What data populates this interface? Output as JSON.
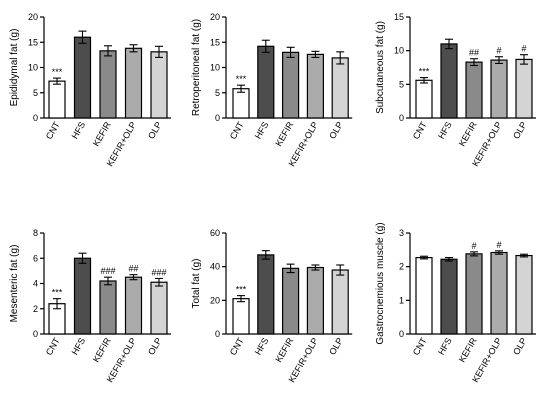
{
  "chart_data": [
    {
      "type": "bar",
      "ylabel": "Epididymal fat (g)",
      "ylim": [
        0,
        20
      ],
      "yticks": [
        "0",
        "5",
        "10",
        "15",
        "20"
      ],
      "categories": [
        "CNT",
        "HFS",
        "KEFIR",
        "KEFIR+OLP",
        "OLP"
      ],
      "values": [
        7.3,
        16.0,
        13.3,
        13.8,
        13.1
      ],
      "errors": [
        0.6,
        1.2,
        1.0,
        0.7,
        1.1
      ],
      "annotations": [
        "***",
        "",
        "",
        "",
        ""
      ],
      "fills": [
        "#ffffff",
        "#4d4d4d",
        "#8a8a8a",
        "#ababab",
        "#d4d4d4"
      ]
    },
    {
      "type": "bar",
      "ylabel": "Retroperitoneal fat (g)",
      "ylim": [
        0,
        20
      ],
      "yticks": [
        "0",
        "5",
        "10",
        "15",
        "20"
      ],
      "categories": [
        "CNT",
        "HFS",
        "KEFIR",
        "KEFIR+OLP",
        "OLP"
      ],
      "values": [
        5.8,
        14.2,
        13.0,
        12.6,
        11.9
      ],
      "errors": [
        0.7,
        1.2,
        1.0,
        0.6,
        1.2
      ],
      "annotations": [
        "***",
        "",
        "",
        "",
        ""
      ],
      "fills": [
        "#ffffff",
        "#4d4d4d",
        "#8a8a8a",
        "#ababab",
        "#d4d4d4"
      ]
    },
    {
      "type": "bar",
      "ylabel": "Subcutaneous fat (g)",
      "ylim": [
        0,
        15
      ],
      "yticks": [
        "0",
        "5",
        "10",
        "15"
      ],
      "categories": [
        "CNT",
        "HFS",
        "KEFIR",
        "KEFIR+OLP",
        "OLP"
      ],
      "values": [
        5.6,
        11.0,
        8.3,
        8.6,
        8.7
      ],
      "errors": [
        0.4,
        0.7,
        0.5,
        0.5,
        0.7
      ],
      "annotations": [
        "***",
        "",
        "##",
        "#",
        "#"
      ],
      "fills": [
        "#ffffff",
        "#4d4d4d",
        "#8a8a8a",
        "#ababab",
        "#d4d4d4"
      ]
    },
    {
      "type": "bar",
      "ylabel": "Mesenteric fat (g)",
      "ylim": [
        0,
        8
      ],
      "yticks": [
        "0",
        "2",
        "4",
        "6",
        "8"
      ],
      "categories": [
        "CNT",
        "HFS",
        "KEFIR",
        "KEFIR+OLP",
        "OLP"
      ],
      "values": [
        2.4,
        6.0,
        4.2,
        4.5,
        4.1
      ],
      "errors": [
        0.4,
        0.4,
        0.3,
        0.2,
        0.3
      ],
      "annotations": [
        "***",
        "",
        "###",
        "##",
        "###"
      ],
      "fills": [
        "#ffffff",
        "#4d4d4d",
        "#8a8a8a",
        "#ababab",
        "#d4d4d4"
      ]
    },
    {
      "type": "bar",
      "ylabel": "Total fat (g)",
      "ylim": [
        0,
        60
      ],
      "yticks": [
        "0",
        "20",
        "40",
        "60"
      ],
      "categories": [
        "CNT",
        "HFS",
        "KEFIR",
        "KEFIR+OLP",
        "OLP"
      ],
      "values": [
        21.0,
        47.0,
        39.0,
        39.5,
        38.0
      ],
      "errors": [
        1.8,
        2.5,
        2.5,
        1.5,
        3.0
      ],
      "annotations": [
        "***",
        "",
        "",
        "",
        ""
      ],
      "fills": [
        "#ffffff",
        "#4d4d4d",
        "#8a8a8a",
        "#ababab",
        "#d4d4d4"
      ]
    },
    {
      "type": "bar",
      "ylabel": "Gastrocnemious muscle (g)",
      "ylim": [
        0,
        3
      ],
      "yticks": [
        "0",
        "1",
        "2",
        "3"
      ],
      "categories": [
        "CNT",
        "HFS",
        "KEFIR",
        "KEFIR+OLP",
        "OLP"
      ],
      "values": [
        2.27,
        2.22,
        2.38,
        2.42,
        2.33
      ],
      "errors": [
        0.04,
        0.05,
        0.06,
        0.05,
        0.04
      ],
      "annotations": [
        "",
        "",
        "#",
        "#",
        ""
      ],
      "fills": [
        "#ffffff",
        "#4d4d4d",
        "#8a8a8a",
        "#ababab",
        "#d4d4d4"
      ]
    }
  ]
}
